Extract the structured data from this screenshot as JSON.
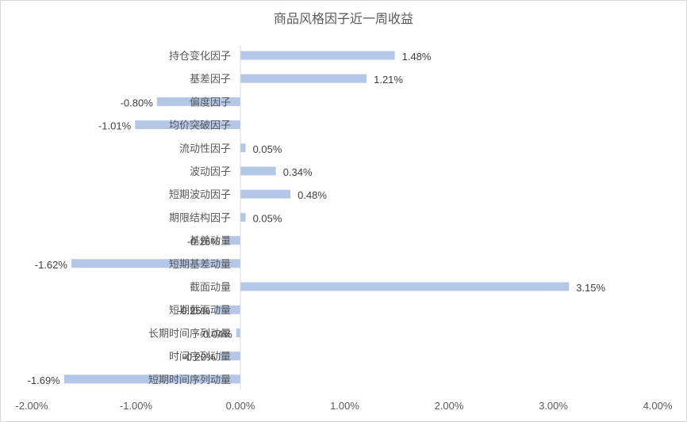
{
  "chart_data": {
    "type": "bar",
    "orientation": "horizontal",
    "title": "商品风格因子近一周收益",
    "categories": [
      "持仓变化因子",
      "基差因子",
      "偏度因子",
      "均价突破因子",
      "流动性因子",
      "波动因子",
      "短期波动因子",
      "期限结构因子",
      "基差动量",
      "短期基差动量",
      "截面动量",
      "短期截面动量",
      "长期时间序列动量",
      "时间序列动量",
      "短期时间序列动量"
    ],
    "values": [
      1.48,
      1.21,
      -0.8,
      -1.01,
      0.05,
      0.34,
      0.48,
      0.05,
      -0.16,
      -1.62,
      3.15,
      -0.25,
      -0.04,
      -0.2,
      -1.69
    ],
    "value_labels": [
      "1.48%",
      "1.21%",
      "-0.80%",
      "-1.01%",
      "0.05%",
      "0.34%",
      "0.48%",
      "0.05%",
      "-0.16%",
      "-1.62%",
      "3.15%",
      "-0.25%",
      "-0.04%",
      "-0.20%",
      "-1.69%"
    ],
    "xlim": [
      -2.0,
      4.0
    ],
    "xticks": [
      -2.0,
      -1.0,
      0.0,
      1.0,
      2.0,
      3.0,
      4.0
    ],
    "xtick_labels": [
      "-2.00%",
      "-1.00%",
      "0.00%",
      "1.00%",
      "2.00%",
      "3.00%",
      "4.00%"
    ],
    "xlabel": "",
    "ylabel": "",
    "grid": false,
    "legend": "none",
    "bar_color": "#b4c7e7",
    "axis_color": "#d9d9d9"
  }
}
